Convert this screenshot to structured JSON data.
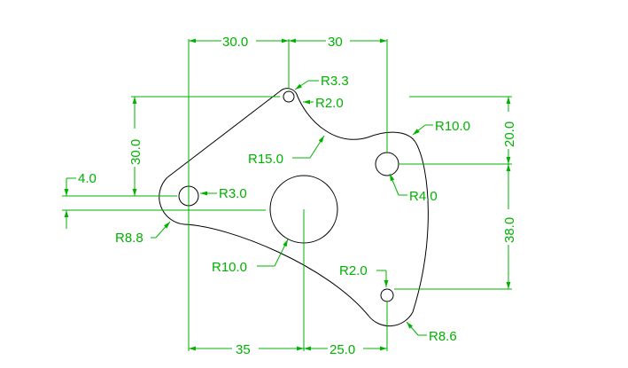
{
  "colors": {
    "background": "#ffffff",
    "object_line": "#000000",
    "dimension": "#00b200"
  },
  "dimensions": {
    "top_left_horizontal": "30.0",
    "top_right_horizontal": "30",
    "left_vertical_upper": "30.0",
    "left_small_offset": "4.0",
    "right_vertical_upper": "20.0",
    "right_vertical_lower": "38.0",
    "bottom_left_horizontal": "35",
    "bottom_right_horizontal": "25.0"
  },
  "callouts": {
    "top_hole_radius": "R3.3",
    "top_fillet_radius": "R2.0",
    "concave_arc_radius": "R15.0",
    "right_boss_radius": "R10.0",
    "right_hole_radius": "R4.0",
    "left_hole_radius": "R3.0",
    "left_boss_radius": "R8.8",
    "center_hole_radius": "R10.0",
    "bottom_hole_radius": "R2.0",
    "bottom_boss_radius": "R8.6"
  }
}
